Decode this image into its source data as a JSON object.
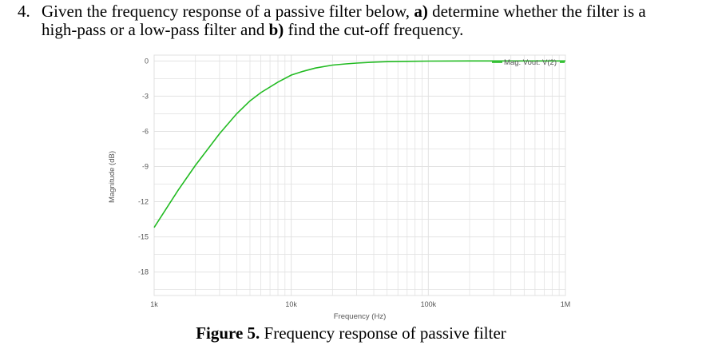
{
  "question": {
    "number": "4.",
    "line1_pre": "Given the frequency response of a passive filter below,",
    "part_a_label": "a)",
    "line1_mid": "determine whether the filter is a",
    "line2_pre": "high-pass or a low-pass filter and",
    "part_b_label": "b)",
    "line2_post": "find the cut-off frequency."
  },
  "caption": {
    "label": "Figure 5.",
    "text": "Frequency response of passive filter"
  },
  "colors": {
    "series": "#22bb22",
    "grid": "#e2e2e2",
    "text": "#555555"
  },
  "chart_data": {
    "type": "line",
    "xlabel": "Frequency (Hz)",
    "ylabel": "Magnitude (dB)",
    "xscale": "log",
    "xlim": [
      1000,
      1000000
    ],
    "ylim": [
      -20,
      0.5
    ],
    "x_tick_labels": [
      "1k",
      "10k",
      "100k",
      "1M"
    ],
    "y_ticks": [
      0,
      -3,
      -6,
      -9,
      -12,
      -15,
      -18
    ],
    "grid": true,
    "legend_position": "top-right",
    "series": [
      {
        "name": "Mag: Vout: V(2)",
        "color": "#22bb22",
        "x": [
          1000,
          1500,
          2000,
          3000,
          4000,
          5000,
          6000,
          8000,
          10000,
          12000,
          15000,
          20000,
          25000,
          30000,
          40000,
          50000,
          70000,
          100000,
          200000,
          500000,
          1000000
        ],
        "y": [
          -14.2,
          -11.0,
          -8.9,
          -6.2,
          -4.5,
          -3.4,
          -2.7,
          -1.8,
          -1.2,
          -0.9,
          -0.6,
          -0.35,
          -0.25,
          -0.18,
          -0.1,
          -0.06,
          -0.03,
          -0.01,
          0,
          0,
          0
        ]
      }
    ]
  }
}
